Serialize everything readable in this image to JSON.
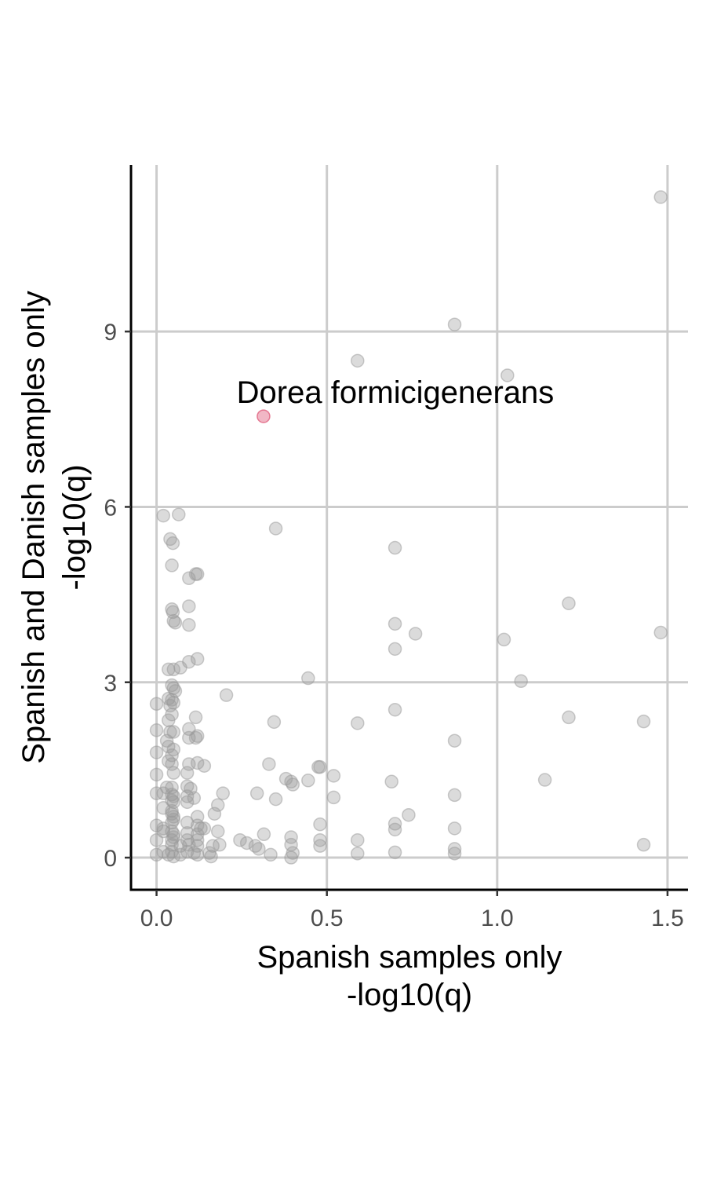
{
  "chart_data": {
    "type": "scatter",
    "title": "",
    "xlabel_lines": [
      "Spanish samples only",
      "-log10(q)"
    ],
    "ylabel_lines": [
      "Spanish and Danish samples only",
      "-log10(q)"
    ],
    "xlim": [
      -0.075,
      1.56
    ],
    "ylim": [
      -0.55,
      11.85
    ],
    "x_ticks": [
      0.0,
      0.5,
      1.0,
      1.5
    ],
    "x_tick_labels": [
      "0.0",
      "0.5",
      "1.0",
      "1.5"
    ],
    "y_ticks": [
      0,
      3,
      6,
      9
    ],
    "y_tick_labels": [
      "0",
      "3",
      "6",
      "9"
    ],
    "grid": true,
    "colors": {
      "point": "#999999",
      "highlight": "#e0607e"
    },
    "highlight": {
      "label": "Dorea formicigenerans",
      "x": 0.314,
      "y": 7.55
    },
    "points": [
      [
        1.48,
        11.3
      ],
      [
        0.875,
        9.12
      ],
      [
        0.59,
        8.5
      ],
      [
        1.03,
        8.25
      ],
      [
        0.02,
        5.85
      ],
      [
        0.065,
        5.87
      ],
      [
        0.35,
        5.63
      ],
      [
        0.04,
        5.45
      ],
      [
        0.048,
        5.38
      ],
      [
        0.7,
        5.3
      ],
      [
        0.045,
        5.0
      ],
      [
        0.115,
        4.85
      ],
      [
        0.12,
        4.85
      ],
      [
        0.095,
        4.78
      ],
      [
        1.21,
        4.35
      ],
      [
        0.045,
        4.25
      ],
      [
        0.048,
        4.2
      ],
      [
        0.095,
        4.3
      ],
      [
        0.05,
        4.05
      ],
      [
        0.055,
        4.02
      ],
      [
        0.095,
        3.98
      ],
      [
        0.7,
        4.0
      ],
      [
        0.76,
        3.83
      ],
      [
        1.02,
        3.73
      ],
      [
        1.48,
        3.85
      ],
      [
        0.7,
        3.57
      ],
      [
        0.12,
        3.4
      ],
      [
        0.095,
        3.35
      ],
      [
        0.07,
        3.25
      ],
      [
        0.035,
        3.22
      ],
      [
        0.05,
        3.22
      ],
      [
        0.445,
        3.07
      ],
      [
        1.07,
        3.02
      ],
      [
        0.045,
        2.95
      ],
      [
        0.05,
        2.9
      ],
      [
        0.055,
        2.85
      ],
      [
        0.205,
        2.78
      ],
      [
        0.035,
        2.72
      ],
      [
        0.045,
        2.7
      ],
      [
        0.05,
        2.65
      ],
      [
        0.04,
        2.6
      ],
      [
        0.0,
        2.63
      ],
      [
        0.7,
        2.53
      ],
      [
        0.045,
        2.45
      ],
      [
        0.115,
        2.4
      ],
      [
        1.21,
        2.4
      ],
      [
        0.035,
        2.35
      ],
      [
        0.345,
        2.32
      ],
      [
        0.59,
        2.3
      ],
      [
        1.43,
        2.33
      ],
      [
        0.0,
        2.18
      ],
      [
        0.095,
        2.2
      ],
      [
        0.04,
        2.15
      ],
      [
        0.05,
        2.15
      ],
      [
        0.03,
        2.0
      ],
      [
        0.095,
        2.05
      ],
      [
        0.115,
        2.05
      ],
      [
        0.12,
        2.08
      ],
      [
        0.875,
        2.0
      ],
      [
        0.035,
        1.9
      ],
      [
        0.05,
        1.85
      ],
      [
        0.0,
        1.8
      ],
      [
        0.045,
        1.75
      ],
      [
        0.035,
        1.65
      ],
      [
        0.045,
        1.6
      ],
      [
        0.095,
        1.6
      ],
      [
        0.12,
        1.62
      ],
      [
        0.14,
        1.57
      ],
      [
        0.33,
        1.6
      ],
      [
        0.475,
        1.55
      ],
      [
        0.48,
        1.55
      ],
      [
        0.05,
        1.45
      ],
      [
        0.09,
        1.45
      ],
      [
        0.0,
        1.42
      ],
      [
        0.38,
        1.35
      ],
      [
        0.445,
        1.32
      ],
      [
        0.52,
        1.4
      ],
      [
        0.395,
        1.3
      ],
      [
        0.4,
        1.25
      ],
      [
        0.69,
        1.3
      ],
      [
        1.14,
        1.33
      ],
      [
        0.03,
        1.2
      ],
      [
        0.045,
        1.2
      ],
      [
        0.09,
        1.22
      ],
      [
        0.1,
        1.18
      ],
      [
        0.195,
        1.1
      ],
      [
        0.0,
        1.1
      ],
      [
        0.02,
        1.1
      ],
      [
        0.045,
        1.08
      ],
      [
        0.05,
        1.05
      ],
      [
        0.09,
        1.05
      ],
      [
        0.11,
        1.02
      ],
      [
        0.295,
        1.1
      ],
      [
        0.35,
        1.0
      ],
      [
        0.52,
        1.03
      ],
      [
        0.875,
        1.07
      ],
      [
        0.045,
        0.98
      ],
      [
        0.05,
        0.95
      ],
      [
        0.09,
        0.95
      ],
      [
        0.18,
        0.9
      ],
      [
        0.02,
        0.85
      ],
      [
        0.045,
        0.8
      ],
      [
        0.045,
        0.75
      ],
      [
        0.05,
        0.7
      ],
      [
        0.12,
        0.7
      ],
      [
        0.17,
        0.75
      ],
      [
        0.74,
        0.73
      ],
      [
        0.0,
        0.55
      ],
      [
        0.02,
        0.5
      ],
      [
        0.045,
        0.6
      ],
      [
        0.05,
        0.65
      ],
      [
        0.09,
        0.6
      ],
      [
        0.12,
        0.55
      ],
      [
        0.13,
        0.5
      ],
      [
        0.14,
        0.5
      ],
      [
        0.48,
        0.57
      ],
      [
        0.7,
        0.58
      ],
      [
        0.7,
        0.48
      ],
      [
        0.875,
        0.5
      ],
      [
        0.02,
        0.45
      ],
      [
        0.045,
        0.45
      ],
      [
        0.05,
        0.4
      ],
      [
        0.09,
        0.42
      ],
      [
        0.12,
        0.4
      ],
      [
        0.18,
        0.45
      ],
      [
        0.315,
        0.4
      ],
      [
        0.395,
        0.35
      ],
      [
        0.0,
        0.3
      ],
      [
        0.045,
        0.3
      ],
      [
        0.05,
        0.35
      ],
      [
        0.09,
        0.3
      ],
      [
        0.12,
        0.3
      ],
      [
        0.245,
        0.3
      ],
      [
        0.265,
        0.25
      ],
      [
        0.48,
        0.3
      ],
      [
        0.59,
        0.3
      ],
      [
        0.045,
        0.22
      ],
      [
        0.07,
        0.2
      ],
      [
        0.095,
        0.22
      ],
      [
        0.12,
        0.2
      ],
      [
        0.165,
        0.2
      ],
      [
        0.185,
        0.22
      ],
      [
        0.29,
        0.2
      ],
      [
        0.395,
        0.22
      ],
      [
        0.48,
        0.2
      ],
      [
        1.43,
        0.22
      ],
      [
        0.3,
        0.15
      ],
      [
        0.875,
        0.15
      ],
      [
        0.0,
        0.05
      ],
      [
        0.02,
        0.1
      ],
      [
        0.035,
        0.05
      ],
      [
        0.045,
        0.1
      ],
      [
        0.05,
        0.02
      ],
      [
        0.07,
        0.05
      ],
      [
        0.09,
        0.1
      ],
      [
        0.11,
        0.08
      ],
      [
        0.12,
        0.05
      ],
      [
        0.155,
        0.08
      ],
      [
        0.16,
        0.02
      ],
      [
        0.335,
        0.05
      ],
      [
        0.395,
        0.0
      ],
      [
        0.4,
        0.08
      ],
      [
        0.59,
        0.07
      ],
      [
        0.7,
        0.09
      ],
      [
        0.875,
        0.07
      ]
    ]
  }
}
